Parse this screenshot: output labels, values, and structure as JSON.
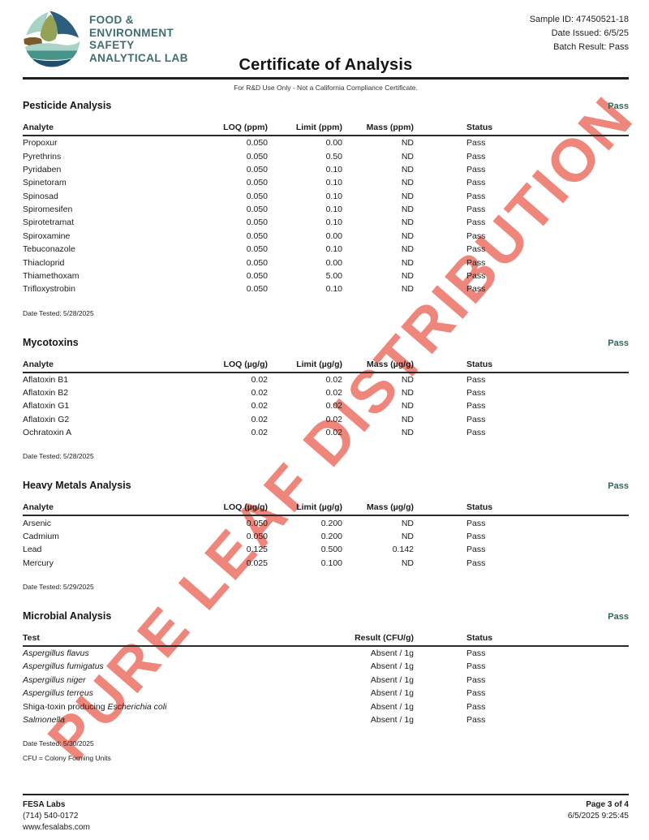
{
  "colors": {
    "brand_teal": "#3f6e6c",
    "pass_green": "#2f6a52",
    "watermark_red": "#eb695c",
    "logo_navy": "#2b5e7f",
    "logo_seafoam": "#a9d3c5",
    "logo_sage": "#93a256",
    "logo_brown": "#7d5a28",
    "logo_teal": "#47958a",
    "logo_deep": "#1f4e6e"
  },
  "header": {
    "lab_name_lines": [
      "FOOD &",
      "ENVIRONMENT",
      "SAFETY",
      "ANALYTICAL LAB"
    ],
    "title": "Certificate of Analysis",
    "disclaimer": "For R&D Use Only - Not a California Compliance Certificate.",
    "sample_id": "Sample ID: 47450521-18",
    "date_issued": "Date Issued: 6/5/25",
    "batch_result": "Batch Result: Pass"
  },
  "watermark": {
    "text": "PURE LEAF DISTRIBUTION"
  },
  "sections": [
    {
      "title": "Pesticide Analysis",
      "status": "Pass",
      "columns": [
        "Analyte",
        "LOQ (ppm)",
        "Limit (ppm)",
        "Mass (ppm)",
        "Status"
      ],
      "rows": [
        [
          "Propoxur",
          "0.050",
          "0.00",
          "ND",
          "Pass"
        ],
        [
          "Pyrethrins",
          "0.050",
          "0.50",
          "ND",
          "Pass"
        ],
        [
          "Pyridaben",
          "0.050",
          "0.10",
          "ND",
          "Pass"
        ],
        [
          "Spinetoram",
          "0.050",
          "0.10",
          "ND",
          "Pass"
        ],
        [
          "Spinosad",
          "0.050",
          "0.10",
          "ND",
          "Pass"
        ],
        [
          "Spiromesifen",
          "0.050",
          "0.10",
          "ND",
          "Pass"
        ],
        [
          "Spirotetramat",
          "0.050",
          "0.10",
          "ND",
          "Pass"
        ],
        [
          "Spiroxamine",
          "0.050",
          "0.00",
          "ND",
          "Pass"
        ],
        [
          "Tebuconazole",
          "0.050",
          "0.10",
          "ND",
          "Pass"
        ],
        [
          "Thiacloprid",
          "0.050",
          "0.00",
          "ND",
          "Pass"
        ],
        [
          "Thiamethoxam",
          "0.050",
          "5.00",
          "ND",
          "Pass"
        ],
        [
          "Trifloxystrobin",
          "0.050",
          "0.10",
          "ND",
          "Pass"
        ]
      ],
      "date_tested": "Date Tested: 5/28/2025"
    },
    {
      "title": "Mycotoxins",
      "status": "Pass",
      "columns": [
        "Analyte",
        "LOQ (µg/g)",
        "Limit (µg/g)",
        "Mass (µg/g)",
        "Status"
      ],
      "rows": [
        [
          "Aflatoxin B1",
          "0.02",
          "0.02",
          "ND",
          "Pass"
        ],
        [
          "Aflatoxin B2",
          "0.02",
          "0.02",
          "ND",
          "Pass"
        ],
        [
          "Aflatoxin G1",
          "0.02",
          "0.02",
          "ND",
          "Pass"
        ],
        [
          "Aflatoxin G2",
          "0.02",
          "0.02",
          "ND",
          "Pass"
        ],
        [
          "Ochratoxin A",
          "0.02",
          "0.02",
          "ND",
          "Pass"
        ]
      ],
      "date_tested": "Date Tested: 5/28/2025"
    },
    {
      "title": "Heavy Metals Analysis",
      "status": "Pass",
      "columns": [
        "Analyte",
        "LOQ (µg/g)",
        "Limit (µg/g)",
        "Mass (µg/g)",
        "Status"
      ],
      "rows": [
        [
          "Arsenic",
          "0.050",
          "0.200",
          "ND",
          "Pass"
        ],
        [
          "Cadmium",
          "0.050",
          "0.200",
          "ND",
          "Pass"
        ],
        [
          "Lead",
          "0.125",
          "0.500",
          "0.142",
          "Pass"
        ],
        [
          "Mercury",
          "0.025",
          "0.100",
          "ND",
          "Pass"
        ]
      ],
      "date_tested": "Date Tested: 5/29/2025"
    },
    {
      "title": "Microbial Analysis",
      "status": "Pass",
      "columns": [
        "Test",
        "Result (CFU/g)",
        "Status"
      ],
      "rows": [
        [
          [
            {
              "t": "Aspergillus flavus",
              "i": true
            }
          ],
          "Absent / 1g",
          "Pass"
        ],
        [
          [
            {
              "t": "Aspergillus fumigatus",
              "i": true
            }
          ],
          "Absent / 1g",
          "Pass"
        ],
        [
          [
            {
              "t": "Aspergillus niger",
              "i": true
            }
          ],
          "Absent / 1g",
          "Pass"
        ],
        [
          [
            {
              "t": "Aspergillus terreus",
              "i": true
            }
          ],
          "Absent / 1g",
          "Pass"
        ],
        [
          [
            {
              "t": "Shiga-toxin producing ",
              "i": false
            },
            {
              "t": "Escherichia coli",
              "i": true
            }
          ],
          "Absent / 1g",
          "Pass"
        ],
        [
          [
            {
              "t": "Salmonella",
              "i": true
            }
          ],
          "Absent / 1g",
          "Pass"
        ]
      ],
      "date_tested": "Date Tested: 5/30/2025",
      "footnote": "CFU = Colony Forming Units"
    }
  ],
  "footer": {
    "company": "FESA Labs",
    "phone": "(714) 540-0172",
    "website": "www.fesalabs.com",
    "page": "Page 3 of 4",
    "datetime": "6/5/2025 9:25:45"
  }
}
